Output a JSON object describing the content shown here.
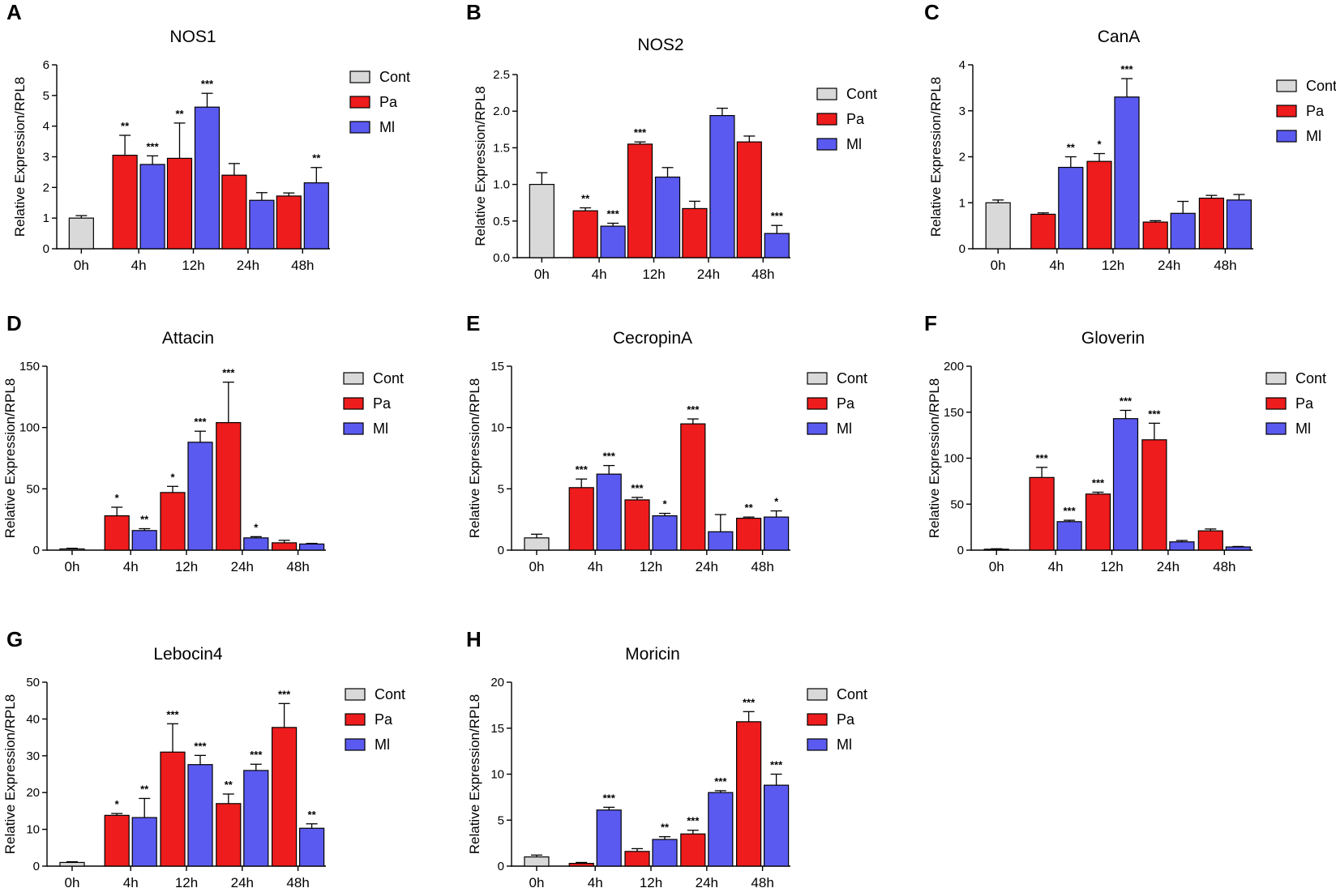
{
  "colors": {
    "Cont": "#d9d9d9",
    "Pa": "#ee1c1c",
    "Ml": "#5a5af0"
  },
  "legend": [
    "Cont",
    "Pa",
    "Ml"
  ],
  "categories": [
    "0h",
    "4h",
    "12h",
    "24h",
    "48h"
  ],
  "chart_data": [
    {
      "type": "bar",
      "panel": "A",
      "title": "NOS1",
      "ylabel": "Relative Expression/RPL8",
      "ylim": [
        0,
        6
      ],
      "yticks": [
        "0",
        "1",
        "2",
        "3",
        "4",
        "5",
        "6"
      ],
      "categories": [
        "0h",
        "4h",
        "12h",
        "24h",
        "48h"
      ],
      "series": [
        {
          "name": "Cont",
          "values": [
            1.0,
            null,
            null,
            null,
            null
          ],
          "errors": [
            0.08,
            null,
            null,
            null,
            null
          ],
          "sig": [
            "",
            "",
            "",
            "",
            ""
          ]
        },
        {
          "name": "Pa",
          "values": [
            null,
            3.05,
            2.95,
            2.4,
            1.72
          ],
          "errors": [
            null,
            0.65,
            1.15,
            0.38,
            0.1
          ],
          "sig": [
            "",
            "**",
            "**",
            "",
            ""
          ]
        },
        {
          "name": "Ml",
          "values": [
            null,
            2.75,
            4.62,
            1.58,
            2.15
          ],
          "errors": [
            null,
            0.28,
            0.45,
            0.25,
            0.5
          ],
          "sig": [
            "",
            "***",
            "***",
            "",
            "**"
          ]
        }
      ]
    },
    {
      "type": "bar",
      "panel": "B",
      "title": "NOS2",
      "ylabel": "Relative Expression/RPL8",
      "ylim": [
        0,
        2.5
      ],
      "yticks": [
        "0.0",
        "0.5",
        "1.0",
        "1.5",
        "2.0",
        "2.5"
      ],
      "categories": [
        "0h",
        "4h",
        "12h",
        "24h",
        "48h"
      ],
      "series": [
        {
          "name": "Cont",
          "values": [
            1.0,
            null,
            null,
            null,
            null
          ],
          "errors": [
            0.16,
            null,
            null,
            null,
            null
          ],
          "sig": [
            "",
            "",
            "",
            "",
            ""
          ]
        },
        {
          "name": "Pa",
          "values": [
            null,
            0.64,
            1.55,
            0.67,
            1.58
          ],
          "errors": [
            null,
            0.04,
            0.03,
            0.1,
            0.08
          ],
          "sig": [
            "",
            "**",
            "***",
            "",
            ""
          ]
        },
        {
          "name": "Ml",
          "values": [
            null,
            0.43,
            1.1,
            1.94,
            0.33
          ],
          "errors": [
            null,
            0.04,
            0.13,
            0.1,
            0.11
          ],
          "sig": [
            "",
            "***",
            "",
            "",
            "***"
          ]
        }
      ]
    },
    {
      "type": "bar",
      "panel": "C",
      "title": "CanA",
      "ylabel": "Relative Expression/RPL8",
      "ylim": [
        0,
        4
      ],
      "yticks": [
        "0",
        "1",
        "2",
        "3",
        "4"
      ],
      "categories": [
        "0h",
        "4h",
        "12h",
        "24h",
        "48h"
      ],
      "series": [
        {
          "name": "Cont",
          "values": [
            1.0,
            null,
            null,
            null,
            null
          ],
          "errors": [
            0.06,
            null,
            null,
            null,
            null
          ],
          "sig": [
            "",
            "",
            "",
            "",
            ""
          ]
        },
        {
          "name": "Pa",
          "values": [
            null,
            0.75,
            1.9,
            0.58,
            1.1
          ],
          "errors": [
            null,
            0.03,
            0.17,
            0.03,
            0.06
          ],
          "sig": [
            "",
            "",
            "*",
            "",
            ""
          ]
        },
        {
          "name": "Ml",
          "values": [
            null,
            1.77,
            3.3,
            0.77,
            1.06
          ],
          "errors": [
            null,
            0.23,
            0.4,
            0.26,
            0.12
          ],
          "sig": [
            "",
            "**",
            "***",
            "",
            ""
          ]
        }
      ]
    },
    {
      "type": "bar",
      "panel": "D",
      "title": "Attacin",
      "ylabel": "Relative Expression/RPL8",
      "ylim": [
        0,
        150
      ],
      "yticks": [
        "0",
        "50",
        "100",
        "150"
      ],
      "categories": [
        "0h",
        "4h",
        "12h",
        "24h",
        "48h"
      ],
      "series": [
        {
          "name": "Cont",
          "values": [
            1.0,
            null,
            null,
            null,
            null
          ],
          "errors": [
            0.5,
            null,
            null,
            null,
            null
          ],
          "sig": [
            "",
            "",
            "",
            "",
            ""
          ]
        },
        {
          "name": "Pa",
          "values": [
            null,
            28,
            47,
            104,
            6
          ],
          "errors": [
            null,
            7,
            5,
            33,
            2
          ],
          "sig": [
            "",
            "*",
            "*",
            "***",
            ""
          ]
        },
        {
          "name": "Ml",
          "values": [
            null,
            16,
            88,
            10,
            5
          ],
          "errors": [
            null,
            1.5,
            9,
            1,
            0.5
          ],
          "sig": [
            "",
            "**",
            "***",
            "*",
            ""
          ]
        }
      ]
    },
    {
      "type": "bar",
      "panel": "E",
      "title": "CecropinA",
      "ylabel": "Relative Expression/RPL8",
      "ylim": [
        0,
        15
      ],
      "yticks": [
        "0",
        "5",
        "10",
        "15"
      ],
      "categories": [
        "0h",
        "4h",
        "12h",
        "24h",
        "48h"
      ],
      "series": [
        {
          "name": "Cont",
          "values": [
            1.0,
            null,
            null,
            null,
            null
          ],
          "errors": [
            0.3,
            null,
            null,
            null,
            null
          ],
          "sig": [
            "",
            "",
            "",
            "",
            ""
          ]
        },
        {
          "name": "Pa",
          "values": [
            null,
            5.1,
            4.1,
            10.3,
            2.6
          ],
          "errors": [
            null,
            0.7,
            0.2,
            0.4,
            0.1
          ],
          "sig": [
            "",
            "***",
            "***",
            "***",
            "**"
          ]
        },
        {
          "name": "Ml",
          "values": [
            null,
            6.2,
            2.8,
            1.5,
            2.7
          ],
          "errors": [
            null,
            0.7,
            0.2,
            1.4,
            0.5
          ],
          "sig": [
            "",
            "***",
            "*",
            "",
            "*"
          ]
        }
      ]
    },
    {
      "type": "bar",
      "panel": "F",
      "title": "Gloverin",
      "ylabel": "Relative Expression/RPL8",
      "ylim": [
        0,
        200
      ],
      "yticks": [
        "0",
        "50",
        "100",
        "150",
        "200"
      ],
      "categories": [
        "0h",
        "4h",
        "12h",
        "24h",
        "48h"
      ],
      "series": [
        {
          "name": "Cont",
          "values": [
            1.0,
            null,
            null,
            null,
            null
          ],
          "errors": [
            0.5,
            null,
            null,
            null,
            null
          ],
          "sig": [
            "",
            "",
            "",
            "",
            ""
          ]
        },
        {
          "name": "Pa",
          "values": [
            null,
            79,
            61,
            120,
            21
          ],
          "errors": [
            null,
            11,
            2,
            18,
            2
          ],
          "sig": [
            "",
            "***",
            "***",
            "***",
            ""
          ]
        },
        {
          "name": "Ml",
          "values": [
            null,
            31,
            143,
            9,
            3.5
          ],
          "errors": [
            null,
            1.5,
            9,
            1.5,
            0.5
          ],
          "sig": [
            "",
            "***",
            "***",
            "",
            ""
          ]
        }
      ]
    },
    {
      "type": "bar",
      "panel": "G",
      "title": "Lebocin4",
      "ylabel": "Relative Expression/RPL8",
      "ylim": [
        0,
        50
      ],
      "yticks": [
        "0",
        "10",
        "20",
        "30",
        "40",
        "50"
      ],
      "categories": [
        "0h",
        "4h",
        "12h",
        "24h",
        "48h"
      ],
      "series": [
        {
          "name": "Cont",
          "values": [
            1.0,
            null,
            null,
            null,
            null
          ],
          "errors": [
            0.2,
            null,
            null,
            null,
            null
          ],
          "sig": [
            "",
            "",
            "",
            "",
            ""
          ]
        },
        {
          "name": "Pa",
          "values": [
            null,
            13.8,
            31,
            17,
            37.7
          ],
          "errors": [
            null,
            0.5,
            7.7,
            2.6,
            6.5
          ],
          "sig": [
            "",
            "*",
            "***",
            "**",
            "***"
          ]
        },
        {
          "name": "Ml",
          "values": [
            null,
            13.2,
            27.6,
            26,
            10.3
          ],
          "errors": [
            null,
            5.2,
            2.5,
            1.7,
            1.2
          ],
          "sig": [
            "",
            "**",
            "***",
            "***",
            "**"
          ]
        }
      ]
    },
    {
      "type": "bar",
      "panel": "H",
      "title": "Moricin",
      "ylabel": "Relative Expression/RPL8",
      "ylim": [
        0,
        20
      ],
      "yticks": [
        "0",
        "5",
        "10",
        "15",
        "20"
      ],
      "categories": [
        "0h",
        "4h",
        "12h",
        "24h",
        "48h"
      ],
      "series": [
        {
          "name": "Cont",
          "values": [
            1.0,
            null,
            null,
            null,
            null
          ],
          "errors": [
            0.2,
            null,
            null,
            null,
            null
          ],
          "sig": [
            "",
            "",
            "",
            "",
            ""
          ]
        },
        {
          "name": "Pa",
          "values": [
            null,
            0.3,
            1.6,
            3.5,
            15.7
          ],
          "errors": [
            null,
            0.1,
            0.3,
            0.4,
            1.1
          ],
          "sig": [
            "",
            "",
            "",
            "***",
            "***"
          ]
        },
        {
          "name": "Ml",
          "values": [
            null,
            6.1,
            2.9,
            8.0,
            8.8
          ],
          "errors": [
            null,
            0.3,
            0.3,
            0.2,
            1.2
          ],
          "sig": [
            "",
            "***",
            "**",
            "***",
            "***"
          ]
        }
      ]
    }
  ]
}
